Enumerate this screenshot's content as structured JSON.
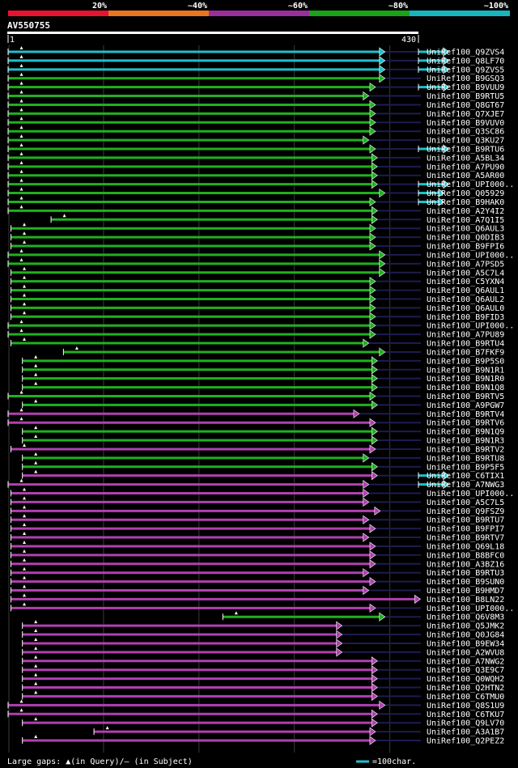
{
  "scale": {
    "labels": [
      "20%",
      "~40%",
      "~60%",
      "~80%",
      "~100%"
    ],
    "colors": [
      "#e8132e",
      "#e8761e",
      "#9a2e9a",
      "#1aa21a",
      "#18b4be"
    ]
  },
  "query": {
    "id": "AV550755",
    "start": "1",
    "end": "430",
    "length": 430
  },
  "colors": {
    "cyan": "#20c0c8",
    "green": "#20b020",
    "purple": "#b040b0",
    "background": "#000000",
    "grid": "#3a3a3a",
    "subject_gap": "#1c1c50",
    "gap_marker": "#ffffe0"
  },
  "footer": {
    "gaps_label": "Large gaps: ▲(in Query)/– (in Subject)",
    "legend_label": "=100char."
  },
  "hits": [
    {
      "name": "UniRef100_Q9ZVS4",
      "color": "cyan",
      "start": 0,
      "end": 395,
      "s2": [
        430,
        462
      ]
    },
    {
      "name": "UniRef100_Q8LF70",
      "color": "cyan",
      "start": 0,
      "end": 395,
      "s2": [
        430,
        462
      ]
    },
    {
      "name": "UniRef100_Q9ZVS5",
      "color": "cyan",
      "start": 0,
      "end": 395,
      "s2": [
        430,
        462
      ]
    },
    {
      "name": "UniRef100_B9GSQ3",
      "color": "green",
      "start": 0,
      "end": 395
    },
    {
      "name": "UniRef100_B9VUU9",
      "color": "green",
      "start": 0,
      "end": 385,
      "s2": [
        430,
        462
      ]
    },
    {
      "name": "UniRef100_B9RTU5",
      "color": "green",
      "start": 0,
      "end": 378
    },
    {
      "name": "UniRef100_Q8GT67",
      "color": "green",
      "start": 0,
      "end": 385
    },
    {
      "name": "UniRef100_Q7XJE7",
      "color": "green",
      "start": 0,
      "end": 385
    },
    {
      "name": "UniRef100_B9VUV0",
      "color": "green",
      "start": 0,
      "end": 385
    },
    {
      "name": "UniRef100_Q3SC86",
      "color": "green",
      "start": 0,
      "end": 385
    },
    {
      "name": "UniRef100_Q3KU27",
      "color": "green",
      "start": 0,
      "end": 378
    },
    {
      "name": "UniRef100_B9RTU6",
      "color": "green",
      "start": 0,
      "end": 385,
      "s2": [
        430,
        462
      ]
    },
    {
      "name": "UniRef100_A5BL34",
      "color": "green",
      "start": 0,
      "end": 387
    },
    {
      "name": "UniRef100_A7PU90",
      "color": "green",
      "start": 0,
      "end": 387
    },
    {
      "name": "UniRef100_A5AR00",
      "color": "green",
      "start": 0,
      "end": 387
    },
    {
      "name": "UniRef100_UPI000..",
      "color": "green",
      "start": 0,
      "end": 387,
      "s2": [
        430,
        462
      ]
    },
    {
      "name": "UniRef100_Q05929",
      "color": "green",
      "start": 0,
      "end": 395,
      "s2": [
        430,
        457
      ]
    },
    {
      "name": "UniRef100_B9HAK0",
      "color": "green",
      "start": 0,
      "end": 385,
      "s2": [
        430,
        457
      ]
    },
    {
      "name": "UniRef100_A2Y4I2",
      "color": "green",
      "start": 0,
      "end": 387
    },
    {
      "name": "UniRef100_A7Q1I5",
      "color": "green",
      "start": 45,
      "end": 387
    },
    {
      "name": "UniRef100_Q6AUL3",
      "color": "green",
      "start": 3,
      "end": 385
    },
    {
      "name": "UniRef100_Q0DIB3",
      "color": "green",
      "start": 3,
      "end": 385
    },
    {
      "name": "UniRef100_B9FPI6",
      "color": "green",
      "start": 3,
      "end": 385
    },
    {
      "name": "UniRef100_UPI000..",
      "color": "green",
      "start": 0,
      "end": 395
    },
    {
      "name": "UniRef100_A7PSD5",
      "color": "green",
      "start": 0,
      "end": 395
    },
    {
      "name": "UniRef100_A5C7L4",
      "color": "green",
      "start": 3,
      "end": 395
    },
    {
      "name": "UniRef100_C5YXN4",
      "color": "green",
      "start": 3,
      "end": 385
    },
    {
      "name": "UniRef100_Q6AUL1",
      "color": "green",
      "start": 3,
      "end": 385
    },
    {
      "name": "UniRef100_Q6AUL2",
      "color": "green",
      "start": 3,
      "end": 385
    },
    {
      "name": "UniRef100_Q6AUL0",
      "color": "green",
      "start": 3,
      "end": 385
    },
    {
      "name": "UniRef100_B9FID3",
      "color": "green",
      "start": 3,
      "end": 385
    },
    {
      "name": "UniRef100_UPI000..",
      "color": "green",
      "start": 0,
      "end": 385
    },
    {
      "name": "UniRef100_A7PU89",
      "color": "green",
      "start": 0,
      "end": 385
    },
    {
      "name": "UniRef100_B9RTU4",
      "color": "green",
      "start": 3,
      "end": 378
    },
    {
      "name": "UniRef100_B7FKF9",
      "color": "green",
      "start": 58,
      "end": 395
    },
    {
      "name": "UniRef100_B9P5S0",
      "color": "green",
      "start": 15,
      "end": 387
    },
    {
      "name": "UniRef100_B9N1R1",
      "color": "green",
      "start": 15,
      "end": 387
    },
    {
      "name": "UniRef100_B9N1R0",
      "color": "green",
      "start": 15,
      "end": 387
    },
    {
      "name": "UniRef100_B9N1Q8",
      "color": "green",
      "start": 15,
      "end": 387
    },
    {
      "name": "UniRef100_B9RTV5",
      "color": "green",
      "start": 0,
      "end": 385
    },
    {
      "name": "UniRef100_A9PGW7",
      "color": "green",
      "start": 15,
      "end": 387
    },
    {
      "name": "UniRef100_B9RTV4",
      "color": "purple",
      "start": 0,
      "end": 368
    },
    {
      "name": "UniRef100_B9RTV6",
      "color": "purple",
      "start": 0,
      "end": 385
    },
    {
      "name": "UniRef100_B9N1Q9",
      "color": "green",
      "start": 15,
      "end": 387
    },
    {
      "name": "UniRef100_B9N1R3",
      "color": "green",
      "start": 15,
      "end": 387
    },
    {
      "name": "UniRef100_B9RTV2",
      "color": "purple",
      "start": 3,
      "end": 385
    },
    {
      "name": "UniRef100_B9RTU8",
      "color": "green",
      "start": 15,
      "end": 378
    },
    {
      "name": "UniRef100_B9P5F5",
      "color": "green",
      "start": 15,
      "end": 387
    },
    {
      "name": "UniRef100_C6TIX1",
      "color": "purple",
      "start": 15,
      "end": 387,
      "s2": [
        430,
        462
      ]
    },
    {
      "name": "UniRef100_A7NWG3",
      "color": "purple",
      "start": 0,
      "end": 378,
      "s2": [
        430,
        462
      ]
    },
    {
      "name": "UniRef100_UPI000..",
      "color": "purple",
      "start": 3,
      "end": 378
    },
    {
      "name": "UniRef100_A5C7L5",
      "color": "purple",
      "start": 3,
      "end": 378
    },
    {
      "name": "UniRef100_Q9FSZ9",
      "color": "purple",
      "start": 3,
      "end": 390
    },
    {
      "name": "UniRef100_B9RTU7",
      "color": "purple",
      "start": 3,
      "end": 378
    },
    {
      "name": "UniRef100_B9FPI7",
      "color": "purple",
      "start": 3,
      "end": 385
    },
    {
      "name": "UniRef100_B9RTV7",
      "color": "purple",
      "start": 3,
      "end": 378
    },
    {
      "name": "UniRef100_Q69L18",
      "color": "purple",
      "start": 3,
      "end": 385
    },
    {
      "name": "UniRef100_B8BFC0",
      "color": "purple",
      "start": 3,
      "end": 385
    },
    {
      "name": "UniRef100_A3BZ16",
      "color": "purple",
      "start": 3,
      "end": 385
    },
    {
      "name": "UniRef100_B9RTU3",
      "color": "purple",
      "start": 3,
      "end": 378
    },
    {
      "name": "UniRef100_B9SUN0",
      "color": "purple",
      "start": 3,
      "end": 385
    },
    {
      "name": "UniRef100_B9HMD7",
      "color": "purple",
      "start": 3,
      "end": 378
    },
    {
      "name": "UniRef100_B8LN22",
      "color": "purple",
      "start": 3,
      "end": 432
    },
    {
      "name": "UniRef100_UPI000..",
      "color": "purple",
      "start": 3,
      "end": 385
    },
    {
      "name": "UniRef100_Q6V8M3",
      "color": "green",
      "start": 225,
      "end": 395
    },
    {
      "name": "UniRef100_Q5JMK2",
      "color": "purple",
      "start": 15,
      "end": 350
    },
    {
      "name": "UniRef100_Q0JG84",
      "color": "purple",
      "start": 15,
      "end": 350
    },
    {
      "name": "UniRef100_B9EW34",
      "color": "purple",
      "start": 15,
      "end": 350
    },
    {
      "name": "UniRef100_A2WVU8",
      "color": "purple",
      "start": 15,
      "end": 350
    },
    {
      "name": "UniRef100_A7NWG2",
      "color": "purple",
      "start": 15,
      "end": 387
    },
    {
      "name": "UniRef100_Q3E9C7",
      "color": "purple",
      "start": 15,
      "end": 387
    },
    {
      "name": "UniRef100_Q0WQH2",
      "color": "purple",
      "start": 15,
      "end": 387
    },
    {
      "name": "UniRef100_Q2HTN2",
      "color": "purple",
      "start": 15,
      "end": 387
    },
    {
      "name": "UniRef100_C6TMU0",
      "color": "purple",
      "start": 15,
      "end": 387
    },
    {
      "name": "UniRef100_Q8S1U9",
      "color": "purple",
      "start": 0,
      "end": 395
    },
    {
      "name": "UniRef100_C6TKU7",
      "color": "purple",
      "start": 0,
      "end": 387
    },
    {
      "name": "UniRef100_Q9LV70",
      "color": "purple",
      "start": 15,
      "end": 387
    },
    {
      "name": "UniRef100_A3A1B7",
      "color": "purple",
      "start": 90,
      "end": 385
    },
    {
      "name": "UniRef100_Q2PEZ2",
      "color": "purple",
      "start": 15,
      "end": 385
    }
  ]
}
